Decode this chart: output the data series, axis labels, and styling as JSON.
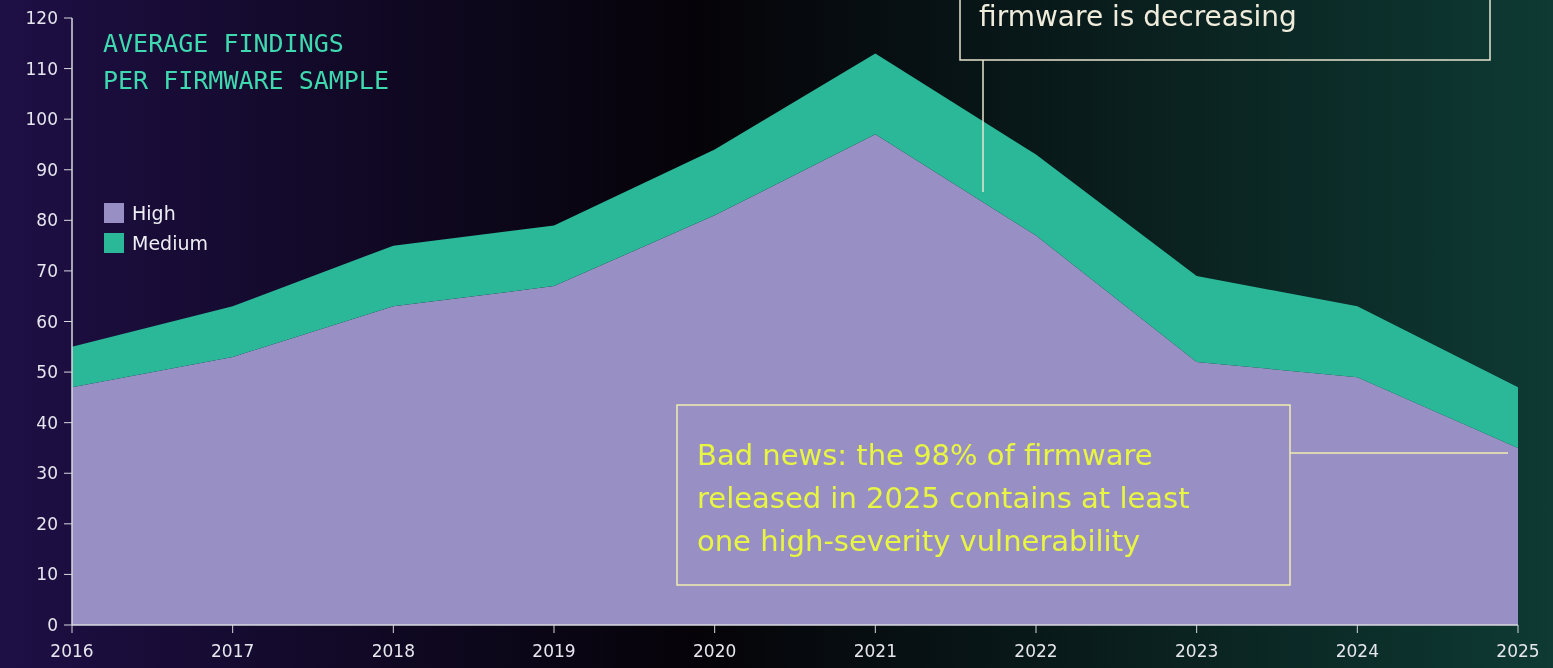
{
  "chart_data": {
    "type": "area",
    "stacked": true,
    "title": "AVERAGE FINDINGS\nPER FIRMWARE SAMPLE",
    "x": [
      2016,
      2017,
      2018,
      2019,
      2020,
      2021,
      2022,
      2023,
      2024,
      2025
    ],
    "series": [
      {
        "name": "High",
        "color": "#9890c4",
        "values": [
          47,
          53,
          63,
          67,
          81,
          97,
          77,
          52,
          49,
          35
        ]
      },
      {
        "name": "Medium",
        "color": "#2bb898",
        "values": [
          8,
          10,
          12,
          12,
          13,
          16,
          16,
          17,
          14,
          12
        ]
      }
    ],
    "xlim": [
      2016,
      2025
    ],
    "xticks": [
      2016,
      2017,
      2018,
      2019,
      2020,
      2021,
      2022,
      2023,
      2024,
      2025
    ],
    "ylim": [
      0,
      120
    ],
    "yticks": [
      0,
      10,
      20,
      30,
      40,
      50,
      60,
      70,
      80,
      90,
      100,
      110,
      120
    ],
    "grid": false,
    "legend": "left",
    "annotations": [
      "firmware is decreasing",
      "Bad news: the 98% of firmware released in 2025 contains at least one high-severity vulnerability"
    ]
  }
}
